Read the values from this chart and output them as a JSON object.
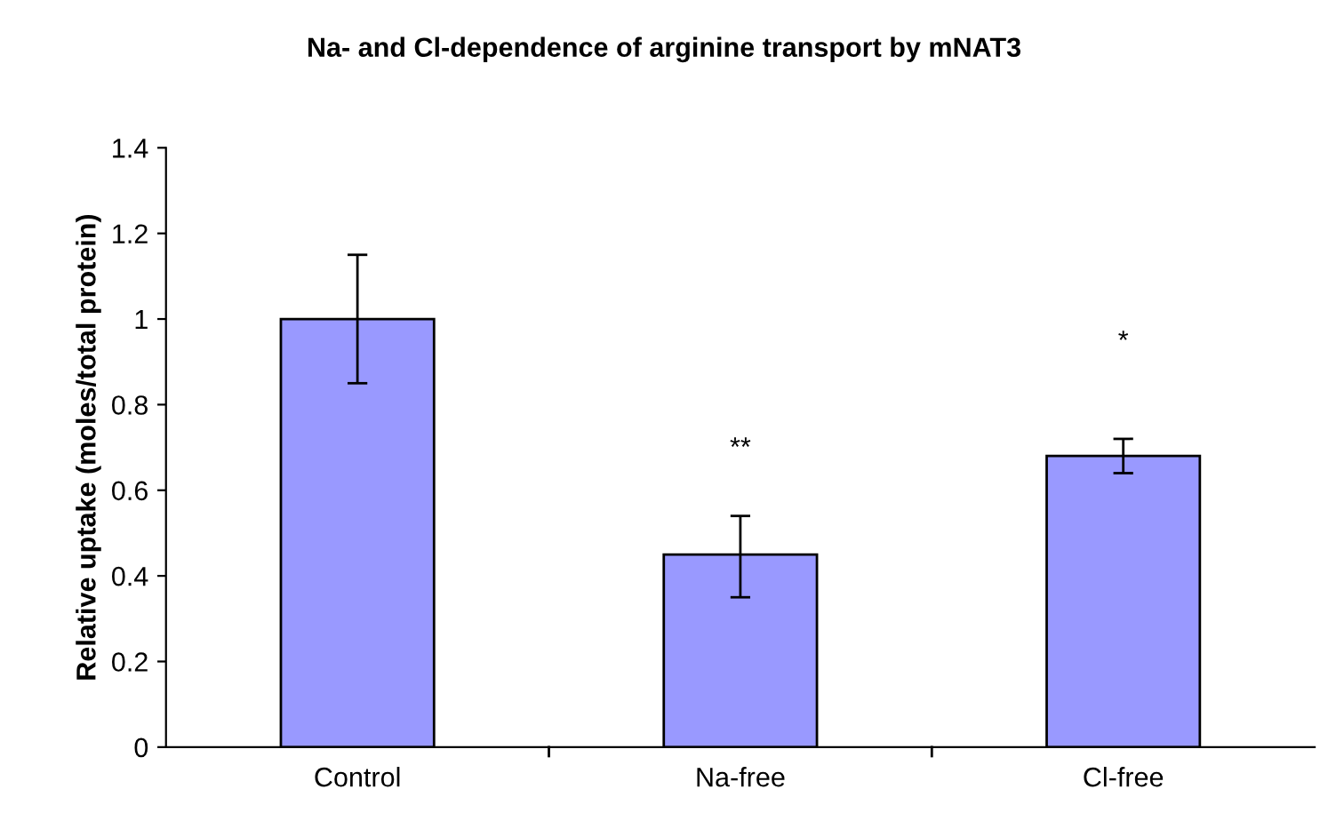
{
  "chart_data": {
    "type": "bar",
    "title": "Na- and Cl-dependence of arginine transport by mNAT3",
    "ylabel": "Relative uptake (moles/total protein)",
    "categories": [
      "Control",
      "Na-free",
      "Cl-free"
    ],
    "values": [
      1.0,
      0.45,
      0.68
    ],
    "errors": [
      [
        0.85,
        1.15
      ],
      [
        0.35,
        0.54
      ],
      [
        0.64,
        0.72
      ]
    ],
    "color": "#9999ff",
    "ylim": [
      0,
      1.4
    ],
    "yticks": [
      0,
      0.2,
      0.4,
      0.6,
      0.8,
      1,
      1.2,
      1.4
    ],
    "annotations": [
      "**",
      "*"
    ],
    "grid": false,
    "legend": false
  }
}
